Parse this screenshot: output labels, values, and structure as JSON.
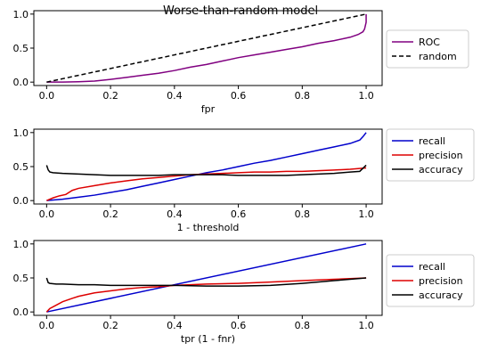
{
  "figure": {
    "title": "Worse-than-random model"
  },
  "chart_data": [
    {
      "type": "line",
      "xlabel": "fpr",
      "ylabel": "",
      "xlim": [
        -0.04,
        1.05
      ],
      "ylim": [
        -0.05,
        1.05
      ],
      "xticks": [
        0.0,
        0.2,
        0.4,
        0.6,
        0.8,
        1.0
      ],
      "xtick_labels": [
        "0.0",
        "0.2",
        "0.4",
        "0.6",
        "0.8",
        "1.0"
      ],
      "yticks": [
        0.0,
        0.5,
        1.0
      ],
      "ytick_labels": [
        "0.0",
        "0.5",
        "1.0"
      ],
      "legend_position": "outside-right",
      "series": [
        {
          "name": "ROC",
          "color": "#800080",
          "dash": "solid",
          "x": [
            0,
            0.05,
            0.1,
            0.15,
            0.2,
            0.25,
            0.3,
            0.35,
            0.4,
            0.45,
            0.5,
            0.55,
            0.6,
            0.65,
            0.7,
            0.75,
            0.8,
            0.85,
            0.9,
            0.95,
            0.975,
            0.99,
            0.995,
            1.0,
            1.0
          ],
          "y": [
            0,
            0.0,
            0.005,
            0.015,
            0.04,
            0.07,
            0.1,
            0.13,
            0.17,
            0.22,
            0.26,
            0.31,
            0.36,
            0.4,
            0.44,
            0.48,
            0.52,
            0.57,
            0.61,
            0.66,
            0.7,
            0.74,
            0.78,
            0.88,
            1.0
          ]
        },
        {
          "name": "random",
          "color": "#000000",
          "dash": "dashed",
          "x": [
            0,
            1
          ],
          "y": [
            0,
            1
          ]
        }
      ]
    },
    {
      "type": "line",
      "xlabel": "1 - threshold",
      "ylabel": "",
      "xlim": [
        -0.04,
        1.05
      ],
      "ylim": [
        -0.05,
        1.05
      ],
      "xticks": [
        0.0,
        0.2,
        0.4,
        0.6,
        0.8,
        1.0
      ],
      "xtick_labels": [
        "0.0",
        "0.2",
        "0.4",
        "0.6",
        "0.8",
        "1.0"
      ],
      "yticks": [
        0.0,
        0.5,
        1.0
      ],
      "ytick_labels": [
        "0.0",
        "0.5",
        "1.0"
      ],
      "legend_position": "outside-right",
      "series": [
        {
          "name": "recall",
          "color": "#0000cc",
          "dash": "solid",
          "x": [
            0,
            0.05,
            0.1,
            0.15,
            0.2,
            0.25,
            0.3,
            0.35,
            0.4,
            0.45,
            0.5,
            0.55,
            0.6,
            0.65,
            0.7,
            0.75,
            0.8,
            0.85,
            0.9,
            0.95,
            0.98,
            0.99,
            1.0
          ],
          "y": [
            0,
            0.02,
            0.05,
            0.08,
            0.12,
            0.16,
            0.21,
            0.26,
            0.31,
            0.36,
            0.41,
            0.45,
            0.5,
            0.55,
            0.59,
            0.64,
            0.69,
            0.74,
            0.79,
            0.84,
            0.89,
            0.94,
            1.0
          ]
        },
        {
          "name": "precision",
          "color": "#dd0000",
          "dash": "solid",
          "x": [
            0,
            0.02,
            0.04,
            0.06,
            0.08,
            0.1,
            0.15,
            0.2,
            0.25,
            0.3,
            0.35,
            0.4,
            0.45,
            0.5,
            0.55,
            0.6,
            0.65,
            0.7,
            0.75,
            0.8,
            0.85,
            0.9,
            0.95,
            1.0
          ],
          "y": [
            0,
            0.04,
            0.07,
            0.09,
            0.15,
            0.18,
            0.22,
            0.26,
            0.29,
            0.32,
            0.34,
            0.36,
            0.38,
            0.39,
            0.4,
            0.41,
            0.42,
            0.42,
            0.43,
            0.43,
            0.44,
            0.45,
            0.46,
            0.48
          ]
        },
        {
          "name": "accuracy",
          "color": "#000000",
          "dash": "solid",
          "x": [
            0,
            0.005,
            0.01,
            0.02,
            0.05,
            0.1,
            0.15,
            0.2,
            0.25,
            0.3,
            0.35,
            0.4,
            0.45,
            0.5,
            0.55,
            0.6,
            0.65,
            0.7,
            0.75,
            0.8,
            0.85,
            0.9,
            0.95,
            0.98,
            1.0
          ],
          "y": [
            0.52,
            0.45,
            0.42,
            0.41,
            0.4,
            0.39,
            0.38,
            0.37,
            0.37,
            0.37,
            0.37,
            0.38,
            0.38,
            0.38,
            0.38,
            0.37,
            0.37,
            0.37,
            0.37,
            0.38,
            0.39,
            0.4,
            0.42,
            0.43,
            0.52
          ]
        }
      ]
    },
    {
      "type": "line",
      "xlabel": "tpr (1 - fnr)",
      "ylabel": "",
      "xlim": [
        -0.04,
        1.05
      ],
      "ylim": [
        -0.05,
        1.05
      ],
      "xticks": [
        0.0,
        0.2,
        0.4,
        0.6,
        0.8,
        1.0
      ],
      "xtick_labels": [
        "0.0",
        "0.2",
        "0.4",
        "0.6",
        "0.8",
        "1.0"
      ],
      "yticks": [
        0.0,
        0.5,
        1.0
      ],
      "ytick_labels": [
        "0.0",
        "0.5",
        "1.0"
      ],
      "legend_position": "outside-right",
      "series": [
        {
          "name": "recall",
          "color": "#0000cc",
          "dash": "solid",
          "x": [
            0,
            1
          ],
          "y": [
            0,
            1
          ]
        },
        {
          "name": "precision",
          "color": "#dd0000",
          "dash": "solid",
          "x": [
            0,
            0.01,
            0.03,
            0.05,
            0.08,
            0.1,
            0.15,
            0.2,
            0.25,
            0.3,
            0.35,
            0.4,
            0.5,
            0.6,
            0.7,
            0.8,
            0.9,
            1.0
          ],
          "y": [
            0,
            0.05,
            0.1,
            0.15,
            0.2,
            0.23,
            0.28,
            0.31,
            0.34,
            0.36,
            0.37,
            0.39,
            0.41,
            0.42,
            0.44,
            0.46,
            0.48,
            0.5
          ]
        },
        {
          "name": "accuracy",
          "color": "#000000",
          "dash": "solid",
          "x": [
            0,
            0.005,
            0.01,
            0.03,
            0.05,
            0.1,
            0.15,
            0.2,
            0.3,
            0.4,
            0.5,
            0.6,
            0.7,
            0.8,
            0.9,
            1.0
          ],
          "y": [
            0.5,
            0.43,
            0.42,
            0.41,
            0.41,
            0.4,
            0.4,
            0.39,
            0.39,
            0.39,
            0.38,
            0.38,
            0.39,
            0.42,
            0.46,
            0.5
          ]
        }
      ]
    }
  ]
}
